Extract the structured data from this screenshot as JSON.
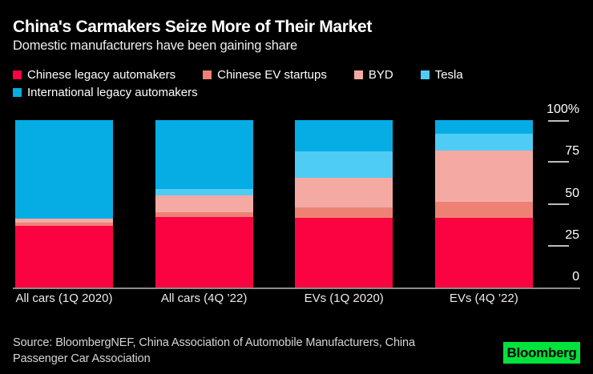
{
  "header": {
    "title": "China's Carmakers Seize More of Their Market",
    "subtitle": "Domestic manufacturers have been gaining share"
  },
  "chart_data": {
    "type": "bar",
    "stacked": true,
    "unit": "%",
    "ylim": [
      0,
      100
    ],
    "grid": false,
    "legend_position": "top",
    "categories": [
      "All cars (1Q 2020)",
      "All cars (4Q ’22)",
      "EVs (1Q 2020)",
      "EVs (4Q ’22)"
    ],
    "series": [
      {
        "name": "Chinese legacy automakers",
        "color": "#fa0340",
        "values": [
          37,
          42,
          41.5,
          41.5
        ]
      },
      {
        "name": "Chinese EV startups",
        "color": "#ee8174",
        "values": [
          2,
          3,
          6.5,
          9.5
        ]
      },
      {
        "name": "BYD",
        "color": "#f4aaa3",
        "values": [
          2,
          10,
          17.5,
          31
        ]
      },
      {
        "name": "Tesla",
        "color": "#4fccf5",
        "values": [
          0,
          4,
          16,
          10
        ]
      },
      {
        "name": "International legacy automakers",
        "color": "#06ace4",
        "values": [
          59,
          41,
          18.5,
          8
        ]
      }
    ],
    "yticks": [
      {
        "label": "100%",
        "value": 100
      },
      {
        "label": "75",
        "value": 75
      },
      {
        "label": "50",
        "value": 50
      },
      {
        "label": "25",
        "value": 25
      },
      {
        "label": "0",
        "value": 0
      }
    ],
    "legend_rows": [
      [
        0,
        1,
        2,
        3
      ],
      [
        4
      ]
    ]
  },
  "source": {
    "line1": "Source: BloombergNEF, China Association of Automobile Manufacturers, China",
    "line2": "Passenger Car Association"
  },
  "logo": {
    "text": "Bloomberg",
    "bg": "#00e33c",
    "fg": "#000000"
  }
}
